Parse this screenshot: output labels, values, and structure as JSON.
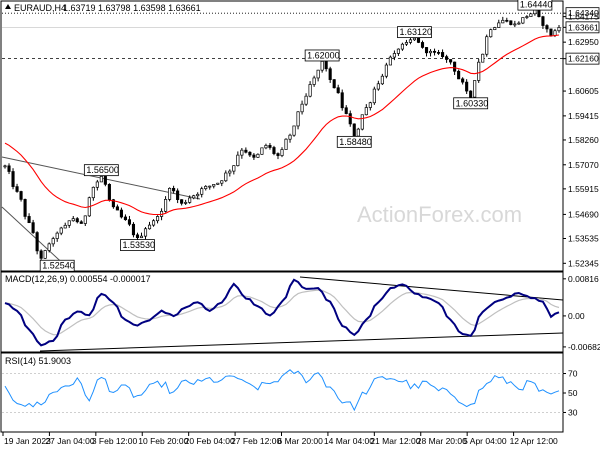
{
  "header": {
    "symbol": "EURAUD,H4",
    "ohlc": "1.63719 1.63798 1.63598 1.63661",
    "icon": "chart-triangle-icon"
  },
  "watermark": "ActionForex.com",
  "chart_data": {
    "type": "candlestick",
    "main": {
      "y_ticks": [
        "1.64340",
        "1.64175",
        "1.63661",
        "1.62950",
        "1.62160",
        "1.60605",
        "1.59415",
        "1.58260",
        "1.57070",
        "1.55915",
        "1.54690",
        "1.53535",
        "1.52345"
      ],
      "ylim": [
        1.5212,
        1.6478
      ],
      "price_labels": [
        {
          "text": "1.52540",
          "value": 1.5254
        },
        {
          "text": "1.56500",
          "value": 1.565
        },
        {
          "text": "1.53530",
          "value": 1.5353
        },
        {
          "text": "1.62000",
          "value": 1.62
        },
        {
          "text": "1.58480",
          "value": 1.5848
        },
        {
          "text": "1.63120",
          "value": 1.6312
        },
        {
          "text": "1.60330",
          "value": 1.6033
        },
        {
          "text": "1.64440",
          "value": 1.6444
        }
      ],
      "h_lines": [
        {
          "value": 1.6434,
          "tag": "1.64340",
          "style": "dotted"
        },
        {
          "value": 1.6216,
          "tag": "1.62160",
          "style": "dashed"
        },
        {
          "value": 1.63661,
          "tag": "1.63661",
          "style": "current"
        }
      ],
      "indicator": {
        "name": "moving average",
        "color": "#ff0000"
      },
      "candle_color": "#000000",
      "anchors": [
        [
          0,
          1.57
        ],
        [
          3,
          1.5575
        ],
        [
          6,
          1.5425
        ],
        [
          9,
          1.5254
        ],
        [
          11,
          1.533
        ],
        [
          14,
          1.54
        ],
        [
          17,
          1.545
        ],
        [
          19,
          1.542
        ],
        [
          22,
          1.56
        ],
        [
          24,
          1.565
        ],
        [
          27,
          1.55
        ],
        [
          30,
          1.544
        ],
        [
          33,
          1.5353
        ],
        [
          36,
          1.542
        ],
        [
          39,
          1.548
        ],
        [
          41,
          1.56
        ],
        [
          44,
          1.552
        ],
        [
          47,
          1.556
        ],
        [
          50,
          1.56
        ],
        [
          53,
          1.562
        ],
        [
          56,
          1.568
        ],
        [
          59,
          1.578
        ],
        [
          62,
          1.574
        ],
        [
          65,
          1.58
        ],
        [
          68,
          1.575
        ],
        [
          71,
          1.585
        ],
        [
          74,
          1.6
        ],
        [
          77,
          1.612
        ],
        [
          79,
          1.62
        ],
        [
          82,
          1.608
        ],
        [
          85,
          1.595
        ],
        [
          87,
          1.5848
        ],
        [
          90,
          1.598
        ],
        [
          93,
          1.61
        ],
        [
          96,
          1.622
        ],
        [
          99,
          1.628
        ],
        [
          102,
          1.6312
        ],
        [
          105,
          1.625
        ],
        [
          108,
          1.624
        ],
        [
          111,
          1.62
        ],
        [
          113,
          1.612
        ],
        [
          116,
          1.6033
        ],
        [
          118,
          1.62
        ],
        [
          121,
          1.636
        ],
        [
          124,
          1.64
        ],
        [
          127,
          1.638
        ],
        [
          130,
          1.642
        ],
        [
          132,
          1.6444
        ],
        [
          134,
          1.638
        ],
        [
          136,
          1.633
        ],
        [
          138,
          1.6366
        ]
      ]
    },
    "macd": {
      "label": "MACD(12,26,9) 0.000554 -0.000017",
      "y_ticks": [
        "0.00816",
        "0.00",
        "-0.006821"
      ],
      "ylim": [
        -0.0075,
        0.009
      ],
      "colors": {
        "macd": "#000080",
        "signal": "#c0c0c0"
      },
      "anchors": [
        [
          0,
          0.003
        ],
        [
          3,
          0.001
        ],
        [
          6,
          -0.003
        ],
        [
          9,
          -0.0064
        ],
        [
          12,
          -0.0055
        ],
        [
          15,
          -0.001
        ],
        [
          18,
          0.001
        ],
        [
          21,
          0.0
        ],
        [
          24,
          0.005
        ],
        [
          27,
          0.003
        ],
        [
          30,
          -0.001
        ],
        [
          33,
          -0.002
        ],
        [
          36,
          -0.0008
        ],
        [
          39,
          0.001
        ],
        [
          42,
          0.0
        ],
        [
          45,
          0.002
        ],
        [
          48,
          0.003
        ],
        [
          51,
          0.001
        ],
        [
          54,
          0.003
        ],
        [
          57,
          0.007
        ],
        [
          60,
          0.004
        ],
        [
          63,
          0.002
        ],
        [
          66,
          0.0
        ],
        [
          69,
          0.003
        ],
        [
          72,
          0.008
        ],
        [
          75,
          0.006
        ],
        [
          78,
          0.006
        ],
        [
          81,
          0.003
        ],
        [
          84,
          -0.002
        ],
        [
          87,
          -0.004
        ],
        [
          90,
          -0.001
        ],
        [
          93,
          0.003
        ],
        [
          96,
          0.006
        ],
        [
          99,
          0.007
        ],
        [
          102,
          0.005
        ],
        [
          105,
          0.004
        ],
        [
          108,
          0.003
        ],
        [
          111,
          -0.001
        ],
        [
          114,
          -0.004
        ],
        [
          116,
          -0.0045
        ],
        [
          119,
          0.001
        ],
        [
          122,
          0.003
        ],
        [
          125,
          0.004
        ],
        [
          128,
          0.005
        ],
        [
          131,
          0.004
        ],
        [
          134,
          0.003
        ],
        [
          136,
          0.0
        ],
        [
          138,
          0.0006
        ]
      ]
    },
    "rsi": {
      "label": "RSI(14) 51.9003",
      "y_ticks": [
        "70",
        "50",
        "30"
      ],
      "ylim": [
        12,
        88
      ],
      "color": "#1e90ff",
      "anchors": [
        [
          0,
          55
        ],
        [
          3,
          42
        ],
        [
          6,
          36
        ],
        [
          9,
          40
        ],
        [
          12,
          50
        ],
        [
          15,
          58
        ],
        [
          18,
          62
        ],
        [
          21,
          45
        ],
        [
          24,
          66
        ],
        [
          27,
          52
        ],
        [
          30,
          55
        ],
        [
          33,
          46
        ],
        [
          36,
          55
        ],
        [
          39,
          60
        ],
        [
          42,
          50
        ],
        [
          45,
          62
        ],
        [
          48,
          60
        ],
        [
          51,
          64
        ],
        [
          54,
          62
        ],
        [
          57,
          68
        ],
        [
          60,
          58
        ],
        [
          63,
          56
        ],
        [
          66,
          60
        ],
        [
          69,
          66
        ],
        [
          72,
          72
        ],
        [
          75,
          64
        ],
        [
          78,
          70
        ],
        [
          81,
          56
        ],
        [
          84,
          42
        ],
        [
          87,
          36
        ],
        [
          90,
          52
        ],
        [
          93,
          64
        ],
        [
          96,
          66
        ],
        [
          99,
          62
        ],
        [
          102,
          56
        ],
        [
          105,
          60
        ],
        [
          108,
          52
        ],
        [
          111,
          50
        ],
        [
          114,
          42
        ],
        [
          116,
          36
        ],
        [
          119,
          56
        ],
        [
          122,
          66
        ],
        [
          125,
          62
        ],
        [
          128,
          56
        ],
        [
          131,
          60
        ],
        [
          134,
          50
        ],
        [
          136,
          46
        ],
        [
          138,
          52
        ]
      ]
    },
    "x_labels": [
      "19 Jan 2023",
      "27 Jan 04:00",
      "3 Feb 12:00",
      "10 Feb 20:00",
      "20 Feb 04:00",
      "27 Feb 12:00",
      "6 Mar 20:00",
      "14 Mar 04:00",
      "21 Mar 12:00",
      "28 Mar 20:00",
      "5 Apr 04:00",
      "12 Apr 12:00"
    ]
  }
}
